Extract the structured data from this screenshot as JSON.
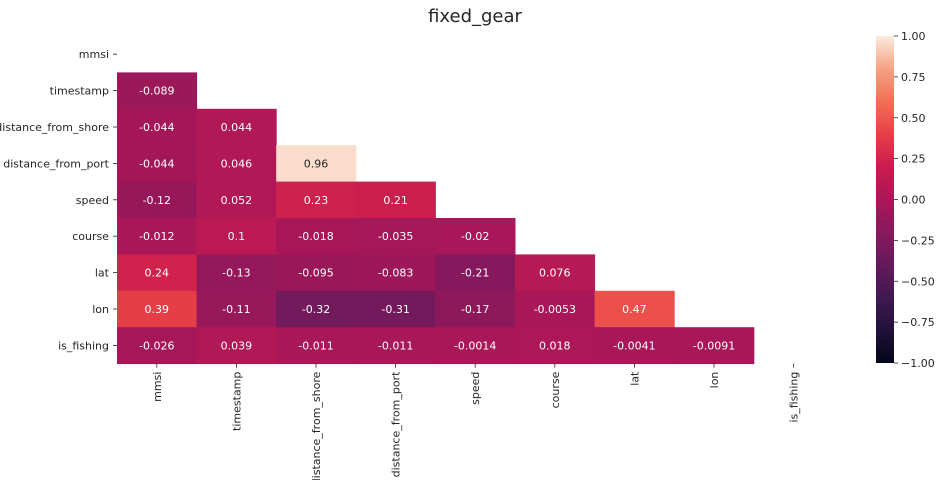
{
  "chart_data": {
    "type": "heatmap",
    "title": "fixed_gear",
    "row_labels": [
      "mmsi",
      "timestamp",
      "distance_from_shore",
      "distance_from_port",
      "speed",
      "course",
      "lat",
      "lon",
      "is_fishing"
    ],
    "col_labels": [
      "mmsi",
      "timestamp",
      "distance_from_shore",
      "distance_from_port",
      "speed",
      "course",
      "lat",
      "lon",
      "is_fishing"
    ],
    "mask": "upper-triangle-including-diagonal",
    "values": [
      [
        null,
        null,
        null,
        null,
        null,
        null,
        null,
        null,
        null
      ],
      [
        -0.089,
        null,
        null,
        null,
        null,
        null,
        null,
        null,
        null
      ],
      [
        -0.044,
        0.044,
        null,
        null,
        null,
        null,
        null,
        null,
        null
      ],
      [
        -0.044,
        0.046,
        0.96,
        null,
        null,
        null,
        null,
        null,
        null
      ],
      [
        -0.12,
        0.052,
        0.23,
        0.21,
        null,
        null,
        null,
        null,
        null
      ],
      [
        -0.012,
        0.1,
        -0.018,
        -0.035,
        -0.02,
        null,
        null,
        null,
        null
      ],
      [
        0.24,
        -0.13,
        -0.095,
        -0.083,
        -0.21,
        0.076,
        null,
        null,
        null
      ],
      [
        0.39,
        -0.11,
        -0.32,
        -0.31,
        -0.17,
        -0.0053,
        0.47,
        null,
        null
      ],
      [
        -0.026,
        0.039,
        -0.011,
        -0.011,
        -0.0014,
        0.018,
        -0.0041,
        -0.0091,
        null
      ]
    ],
    "labels": [
      [
        null,
        null,
        null,
        null,
        null,
        null,
        null,
        null,
        null
      ],
      [
        "-0.089",
        null,
        null,
        null,
        null,
        null,
        null,
        null,
        null
      ],
      [
        "-0.044",
        "0.044",
        null,
        null,
        null,
        null,
        null,
        null,
        null
      ],
      [
        "-0.044",
        "0.046",
        "0.96",
        null,
        null,
        null,
        null,
        null,
        null
      ],
      [
        "-0.12",
        "0.052",
        "0.23",
        "0.21",
        null,
        null,
        null,
        null,
        null
      ],
      [
        "-0.012",
        "0.1",
        "-0.018",
        "-0.035",
        "-0.02",
        null,
        null,
        null,
        null
      ],
      [
        "0.24",
        "-0.13",
        "-0.095",
        "-0.083",
        "-0.21",
        "0.076",
        null,
        null,
        null
      ],
      [
        "0.39",
        "-0.11",
        "-0.32",
        "-0.31",
        "-0.17",
        "-0.0053",
        "0.47",
        null,
        null
      ],
      [
        "-0.026",
        "0.039",
        "-0.011",
        "-0.011",
        "-0.0014",
        "0.018",
        "-0.0041",
        "-0.0091",
        null
      ]
    ],
    "colormap": "rocket",
    "vmin": -1.0,
    "vmax": 1.0,
    "colorbar_ticks": [
      1.0,
      0.75,
      0.5,
      0.25,
      0.0,
      -0.25,
      -0.5,
      -0.75,
      -1.0
    ],
    "colorbar_tick_labels": [
      "1.00",
      "0.75",
      "0.50",
      "0.25",
      "0.00",
      "−0.25",
      "−0.50",
      "−0.75",
      "−1.00"
    ],
    "grid": false,
    "legend": "colorbar-right"
  }
}
